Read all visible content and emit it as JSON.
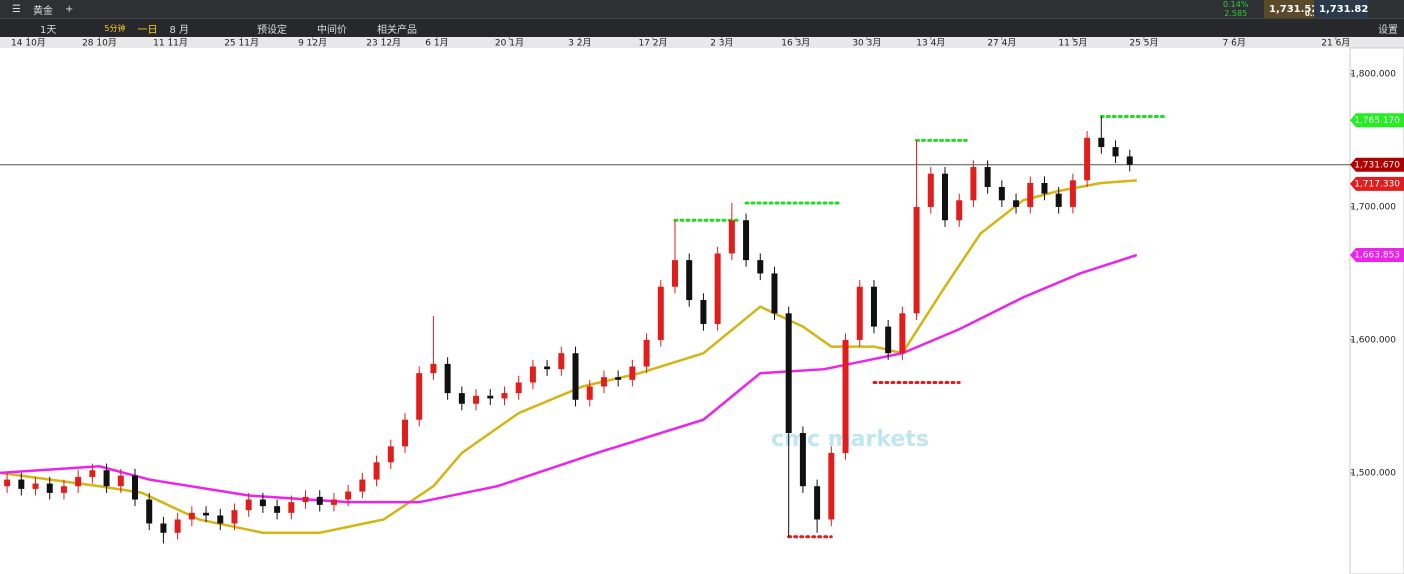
{
  "toolbar": {
    "symbol": "黄金",
    "period": "1天",
    "interval_a": "5分钟",
    "interval_b": "一日",
    "range": "8 月",
    "presets": "预设定",
    "midprice": "中间价",
    "related": "相关产品",
    "settings": "设置",
    "change_pct": "0.14%",
    "change": "2.585",
    "bid": "1,731.52",
    "spread": "0.30",
    "ask": "1,731.82"
  },
  "watermark": "cmc markets",
  "chart_data": {
    "type": "candlestick",
    "xlim": [
      -4,
      186
    ],
    "ylim": [
      1424,
      1819.5
    ],
    "xticks": [
      {
        "value": 0,
        "label": "14 10月"
      },
      {
        "value": 10,
        "label": "28 10月"
      },
      {
        "value": 20,
        "label": "11 11月"
      },
      {
        "value": 30,
        "label": "25 11月"
      },
      {
        "value": 40,
        "label": "9 12月"
      },
      {
        "value": 50,
        "label": "23 12月"
      },
      {
        "value": 57.5,
        "label": "6 1月"
      },
      {
        "value": 67.7,
        "label": "20 1月"
      },
      {
        "value": 77.6,
        "label": "3 2月"
      },
      {
        "value": 87.9,
        "label": "17 2月"
      },
      {
        "value": 97.6,
        "label": "2 3月"
      },
      {
        "value": 108,
        "label": "16 3月"
      },
      {
        "value": 118,
        "label": "30 3月"
      },
      {
        "value": 127,
        "label": "13 4月"
      },
      {
        "value": 137,
        "label": "27 4月"
      },
      {
        "value": 147,
        "label": "11 5月"
      },
      {
        "value": 157,
        "label": "25 5月"
      },
      {
        "value": 169.7,
        "label": "7 6月"
      },
      {
        "value": 184,
        "label": "21 6月"
      }
    ],
    "yticks": [
      {
        "value": 1500,
        "label": "1,500.000"
      },
      {
        "value": 1600,
        "label": "1,600.000"
      },
      {
        "value": 1700,
        "label": "1,700.000"
      },
      {
        "value": 1800,
        "label": "1,800.000"
      }
    ],
    "up_color": "#e01e1e",
    "down_color": "#111111",
    "x": [
      -3,
      -1,
      1,
      3,
      5,
      7,
      9,
      11,
      13,
      15,
      17,
      19,
      21,
      23,
      25,
      27,
      29,
      31,
      33,
      35,
      37,
      39,
      41,
      43,
      45,
      47,
      49,
      51,
      53,
      55,
      57,
      59,
      61,
      63,
      65,
      67,
      69,
      71,
      73,
      75,
      77,
      79,
      81,
      83,
      85,
      87,
      89,
      91,
      93,
      95,
      97,
      99,
      101,
      103,
      105,
      107,
      109,
      111,
      113,
      115,
      117,
      119,
      121,
      123,
      125,
      127,
      129,
      131,
      133,
      135,
      137,
      139,
      141,
      143,
      145,
      147,
      149,
      151,
      153,
      155
    ],
    "open": [
      1490,
      1495,
      1488,
      1492,
      1485,
      1490,
      1497,
      1502,
      1490,
      1498,
      1480,
      1462,
      1455,
      1465,
      1470,
      1468,
      1462,
      1472,
      1480,
      1475,
      1470,
      1478,
      1482,
      1476,
      1480,
      1486,
      1495,
      1508,
      1520,
      1540,
      1575,
      1582,
      1560,
      1552,
      1558,
      1556,
      1560,
      1568,
      1580,
      1578,
      1590,
      1555,
      1565,
      1572,
      1570,
      1580,
      1600,
      1640,
      1660,
      1630,
      1612,
      1665,
      1690,
      1660,
      1650,
      1620,
      1530,
      1490,
      1465,
      1515,
      1600,
      1640,
      1610,
      1590,
      1620,
      1700,
      1725,
      1690,
      1705,
      1730,
      1715,
      1705,
      1700,
      1718,
      1710,
      1700,
      1720,
      1752,
      1745,
      1738
    ],
    "high": [
      1500,
      1500,
      1497,
      1497,
      1495,
      1502,
      1507,
      1507,
      1503,
      1503,
      1485,
      1467,
      1470,
      1475,
      1475,
      1473,
      1477,
      1485,
      1485,
      1480,
      1483,
      1487,
      1487,
      1485,
      1491,
      1500,
      1513,
      1525,
      1545,
      1580,
      1618,
      1587,
      1565,
      1563,
      1563,
      1565,
      1573,
      1585,
      1585,
      1595,
      1595,
      1570,
      1577,
      1577,
      1585,
      1605,
      1645,
      1690,
      1665,
      1635,
      1670,
      1703,
      1695,
      1665,
      1655,
      1625,
      1535,
      1495,
      1520,
      1605,
      1645,
      1645,
      1615,
      1625,
      1750,
      1730,
      1730,
      1710,
      1735,
      1735,
      1720,
      1710,
      1723,
      1723,
      1715,
      1725,
      1757,
      1768,
      1750,
      1743
    ],
    "low": [
      1485,
      1483,
      1483,
      1480,
      1480,
      1485,
      1492,
      1485,
      1485,
      1475,
      1457,
      1447,
      1450,
      1460,
      1463,
      1457,
      1457,
      1467,
      1470,
      1465,
      1465,
      1473,
      1471,
      1471,
      1475,
      1481,
      1490,
      1503,
      1515,
      1535,
      1570,
      1555,
      1547,
      1547,
      1551,
      1551,
      1555,
      1563,
      1573,
      1573,
      1550,
      1550,
      1560,
      1565,
      1565,
      1575,
      1595,
      1635,
      1625,
      1607,
      1607,
      1660,
      1655,
      1645,
      1615,
      1452,
      1485,
      1455,
      1460,
      1510,
      1595,
      1605,
      1585,
      1585,
      1615,
      1695,
      1685,
      1685,
      1700,
      1710,
      1700,
      1695,
      1695,
      1705,
      1695,
      1695,
      1715,
      1740,
      1733,
      1726.67
    ],
    "close": [
      1495,
      1488,
      1492,
      1485,
      1490,
      1497,
      1502,
      1490,
      1498,
      1480,
      1462,
      1455,
      1465,
      1470,
      1468,
      1462,
      1472,
      1480,
      1475,
      1470,
      1478,
      1482,
      1476,
      1480,
      1486,
      1495,
      1508,
      1520,
      1540,
      1575,
      1582,
      1560,
      1552,
      1558,
      1556,
      1560,
      1568,
      1580,
      1578,
      1590,
      1555,
      1565,
      1572,
      1570,
      1580,
      1600,
      1640,
      1660,
      1630,
      1612,
      1665,
      1690,
      1660,
      1650,
      1620,
      1530,
      1490,
      1465,
      1515,
      1600,
      1640,
      1610,
      1590,
      1620,
      1700,
      1725,
      1690,
      1705,
      1730,
      1715,
      1705,
      1700,
      1718,
      1710,
      1700,
      1720,
      1752,
      1745,
      1738,
      1731.67
    ],
    "lines": [
      {
        "color": "#d4b514",
        "x": [
          -4,
          10,
          16,
          24,
          33,
          41,
          50,
          57,
          61,
          69,
          78,
          86,
          95,
          103,
          109,
          113,
          119,
          123,
          129,
          134,
          140,
          145,
          151,
          156
        ],
        "values": [
          1500,
          1490,
          1485,
          1465,
          1455,
          1455,
          1465,
          1490,
          1515,
          1545,
          1565,
          1575,
          1590,
          1625,
          1610,
          1595,
          1595,
          1590,
          1640,
          1680,
          1705,
          1712,
          1718,
          1720
        ]
      },
      {
        "color": "#ee22ee",
        "x": [
          -4,
          10,
          17,
          31,
          45,
          55,
          66,
          80,
          95,
          103,
          112,
          123,
          131,
          140,
          148,
          156
        ],
        "values": [
          1500,
          1505,
          1495,
          1483,
          1478,
          1478,
          1490,
          1515,
          1540,
          1575,
          1578,
          1590,
          1608,
          1632,
          1650,
          1663.853
        ]
      }
    ],
    "levels": [
      {
        "color": "#22dd22",
        "value": 1768,
        "x": [
          151,
          160
        ]
      },
      {
        "color": "#22dd22",
        "value": 1750,
        "x": [
          125,
          132
        ]
      },
      {
        "color": "#22dd22",
        "value": 1703,
        "x": [
          101,
          114
        ]
      },
      {
        "color": "#22dd22",
        "value": 1690,
        "x": [
          91,
          100
        ]
      },
      {
        "color": "#e01e1e",
        "value": 1568,
        "x": [
          119,
          131
        ]
      },
      {
        "color": "#e01e1e",
        "value": 1452,
        "x": [
          107,
          113
        ]
      }
    ],
    "current": 1731.67,
    "price_tags": [
      {
        "value": 1765.17,
        "label": "1,765.170",
        "color": "#22ee22"
      },
      {
        "value": 1731.67,
        "label": "1,731.670",
        "color": "#b00000"
      },
      {
        "value": 1717.33,
        "label": "1,717.330",
        "color": "#e01e1e"
      },
      {
        "value": 1663.853,
        "label": "1,663.853",
        "color": "#ee22ee"
      }
    ]
  }
}
